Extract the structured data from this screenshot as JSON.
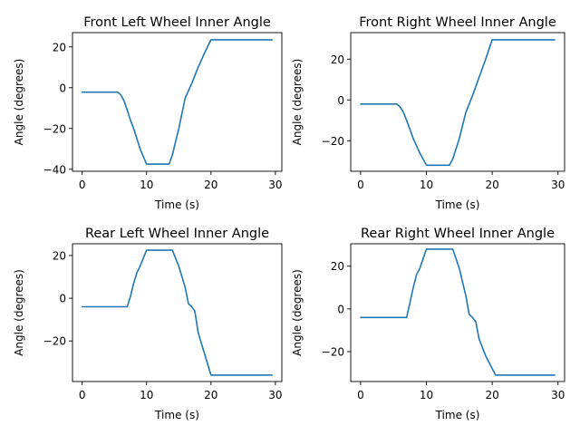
{
  "line_color": "#1f77b4",
  "chart_data": [
    {
      "type": "line",
      "title": "Front Left Wheel Inner Angle",
      "xlabel": "Time (s)",
      "ylabel": "Angle (degrees)",
      "xlim": [
        -1.5,
        31
      ],
      "ylim": [
        -41,
        27
      ],
      "xticks": [
        0,
        10,
        20,
        30
      ],
      "yticks": [
        -40,
        -20,
        0,
        20
      ],
      "x": [
        0,
        5.5,
        6,
        6.5,
        7,
        7.5,
        8,
        9,
        10,
        13.5,
        14,
        15,
        16,
        17,
        18,
        19,
        20,
        29.5
      ],
      "y": [
        -2.2,
        -2.2,
        -3.5,
        -6.5,
        -11,
        -16,
        -20,
        -30,
        -37.5,
        -37.5,
        -33,
        -20,
        -5,
        2,
        10,
        17,
        23.5,
        23.5
      ]
    },
    {
      "type": "line",
      "title": "Front Right Wheel Inner Angle",
      "xlabel": "Time (s)",
      "ylabel": "Angle (degrees)",
      "xlim": [
        -1.5,
        31
      ],
      "ylim": [
        -35,
        33
      ],
      "xticks": [
        0,
        10,
        20,
        30
      ],
      "yticks": [
        -20,
        0,
        20
      ],
      "x": [
        0,
        5.5,
        6,
        6.5,
        7,
        7.5,
        8,
        9,
        10,
        13.5,
        14,
        15,
        16,
        17,
        18,
        19,
        20,
        29.5
      ],
      "y": [
        -2,
        -2,
        -3.5,
        -6,
        -10,
        -14.5,
        -19,
        -26,
        -32,
        -32,
        -29,
        -19,
        -6,
        2,
        11,
        20,
        29.5,
        29.5
      ]
    },
    {
      "type": "line",
      "title": "Rear Left Wheel Inner Angle",
      "xlabel": "Time (s)",
      "ylabel": "Angle (degrees)",
      "xlim": [
        -1.5,
        31
      ],
      "ylim": [
        -39,
        25.5
      ],
      "xticks": [
        0,
        10,
        20,
        30
      ],
      "yticks": [
        -20,
        0,
        20
      ],
      "x": [
        0,
        7,
        7.5,
        8,
        8.5,
        9,
        10,
        14,
        15,
        16,
        16.5,
        17,
        17.5,
        18,
        19,
        20,
        29.5
      ],
      "y": [
        -4,
        -4,
        1,
        7,
        12,
        15,
        22.5,
        22.5,
        15,
        5,
        -2.5,
        -4,
        -6,
        -16,
        -26,
        -36,
        -36
      ]
    },
    {
      "type": "line",
      "title": "Rear Right Wheel Inner Angle",
      "xlabel": "Time (s)",
      "ylabel": "Angle (degrees)",
      "xlim": [
        -1.5,
        31
      ],
      "ylim": [
        -34,
        30.5
      ],
      "xticks": [
        0,
        10,
        20,
        30
      ],
      "yticks": [
        -20,
        0,
        20
      ],
      "x": [
        0,
        7,
        7.5,
        8,
        8.5,
        9,
        10,
        14,
        15,
        16,
        16.5,
        17,
        17.5,
        18,
        19,
        20.5,
        29.5
      ],
      "y": [
        -4,
        -4,
        3,
        10,
        16,
        19,
        28,
        28,
        19,
        6,
        -2.5,
        -4,
        -6,
        -14,
        -22,
        -31,
        -31
      ]
    }
  ]
}
